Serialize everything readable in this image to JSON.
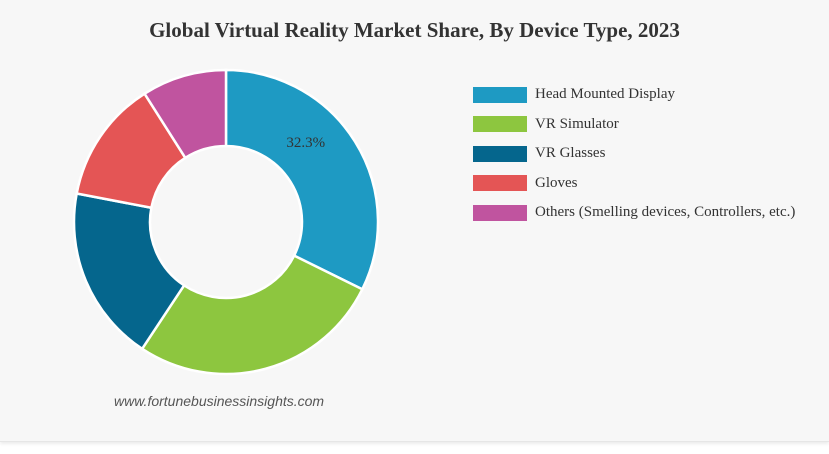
{
  "chart_data": {
    "type": "pie",
    "title": "Global Virtual Reality Market Share, By Device Type, 2023",
    "donut": true,
    "legend_placement": "right",
    "slices": [
      {
        "label": "Head Mounted Display",
        "value": 32.3,
        "color": "#1e9ac3",
        "data_label": "32.3%"
      },
      {
        "label": "VR Simulator",
        "value": 27.0,
        "color": "#8dc63f",
        "data_label": ""
      },
      {
        "label": "VR Glasses",
        "value": 18.7,
        "color": "#05668d",
        "data_label": ""
      },
      {
        "label": "Gloves",
        "value": 13.0,
        "color": "#e45555",
        "data_label": ""
      },
      {
        "label": "Others (Smelling devices, Controllers, etc.)",
        "value": 9.0,
        "color": "#c0549f",
        "data_label": ""
      }
    ]
  },
  "source_text": "www.fortunebusinessinsights.com"
}
